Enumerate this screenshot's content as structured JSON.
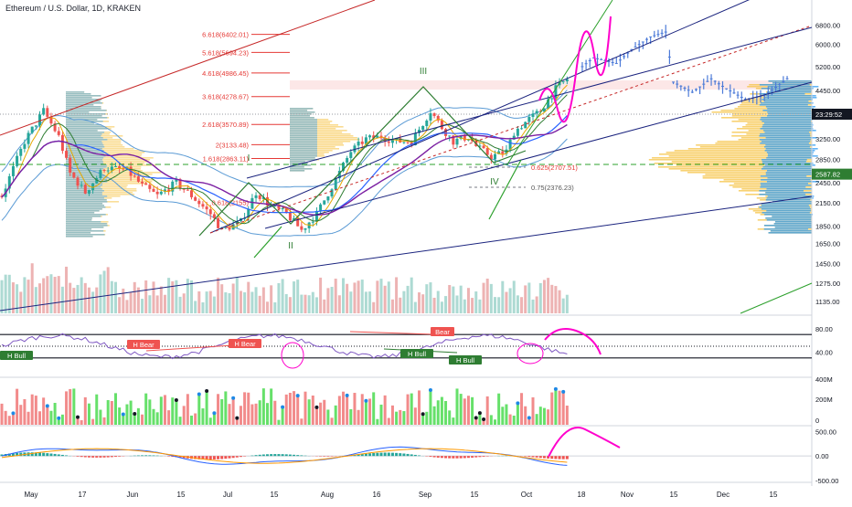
{
  "header": {
    "title": "Ethereum / U.S. Dollar, 1D, KRAKEN"
  },
  "colors": {
    "up": "#26a69a",
    "down": "#ef5350",
    "ma_blue": "#2962ff",
    "bb": "#5b9bd5",
    "channel": "#1a237e",
    "red_line": "#c62828",
    "green_line": "#1b8f1b",
    "magenta": "#ff00cc",
    "fib": "#e53935",
    "vp_yellow": "#f6c344",
    "vp_blue": "#2196f3",
    "price_badge": "#131722",
    "poc_badge": "#2e7d32"
  },
  "chart_data": [
    {
      "type": "candlestick",
      "title": "Ethereum / U.S. Dollar, 1D, KRAKEN",
      "y_scale": "log",
      "ylim": [
        1050,
        8000
      ],
      "y_ticks": [
        6800.0,
        6000.0,
        5200.0,
        4450.0,
        3850.0,
        3250.0,
        2850.0,
        2450.0,
        2150.0,
        1850.0,
        1650.0,
        1450.0,
        1275.0,
        1135.0
      ],
      "x_ticks": [
        "May",
        "17",
        "Jun",
        "15",
        "Jul",
        "15",
        "Aug",
        "16",
        "Sep",
        "15",
        "Oct",
        "18",
        "Nov",
        "15",
        "Dec",
        "15"
      ],
      "price_badges": [
        {
          "label": "23:29:52",
          "value": 3380
        },
        {
          "label": "2587.82",
          "value": 2587.82
        }
      ],
      "fib_levels": [
        {
          "label": "6.618(6402.01)",
          "value": 6402.01
        },
        {
          "label": "5.618(5694.23)",
          "value": 5694.23
        },
        {
          "label": "4.618(4986.45)",
          "value": 4986.45
        },
        {
          "label": "3.618(4278.67)",
          "value": 4278.67
        },
        {
          "label": "2.618(3570.89)",
          "value": 3570.89
        },
        {
          "label": "2(3133.48)",
          "value": 3133.48
        },
        {
          "label": "1.618(2863.11)",
          "value": 2863.11
        },
        {
          "label": "0.618(2155)",
          "value": 2155
        }
      ],
      "retracements": [
        {
          "label": "0.625(2707.51)",
          "value": 2707.51
        },
        {
          "label": "0.75(2376.23)",
          "value": 2376.23
        }
      ],
      "wave_labels": [
        "I",
        "II",
        "III",
        "IV"
      ],
      "price_path": [
        [
          0,
          2250
        ],
        [
          6,
          3200
        ],
        [
          11,
          3900
        ],
        [
          15,
          3300
        ],
        [
          18,
          2600
        ],
        [
          22,
          2300
        ],
        [
          27,
          2700
        ],
        [
          33,
          2650
        ],
        [
          37,
          2400
        ],
        [
          41,
          2250
        ],
        [
          46,
          2450
        ],
        [
          50,
          2250
        ],
        [
          55,
          2000
        ],
        [
          58,
          1800
        ],
        [
          63,
          1900
        ],
        [
          67,
          2300
        ],
        [
          71,
          2100
        ],
        [
          75,
          2000
        ],
        [
          79,
          1800
        ],
        [
          83,
          2000
        ],
        [
          88,
          2500
        ],
        [
          92,
          3000
        ],
        [
          96,
          3250
        ],
        [
          100,
          3300
        ],
        [
          104,
          3200
        ],
        [
          108,
          3200
        ],
        [
          111,
          3600
        ],
        [
          113,
          3900
        ],
        [
          116,
          3500
        ],
        [
          119,
          3200
        ],
        [
          123,
          3300
        ],
        [
          125,
          3100
        ],
        [
          129,
          2900
        ],
        [
          133,
          3000
        ],
        [
          135,
          3400
        ],
        [
          139,
          3700
        ],
        [
          142,
          3900
        ],
        [
          146,
          4500
        ],
        [
          151,
          5000
        ],
        [
          156,
          5500
        ],
        [
          162,
          5300
        ],
        [
          166,
          5800
        ],
        [
          171,
          6300
        ],
        [
          175,
          6500
        ],
        [
          177,
          4700
        ],
        [
          182,
          4400
        ],
        [
          187,
          4800
        ],
        [
          191,
          4500
        ],
        [
          196,
          4200
        ],
        [
          201,
          4300
        ],
        [
          207,
          4800
        ]
      ],
      "candle_count": 150
    },
    {
      "type": "line",
      "title": "RSI",
      "ylim": [
        0,
        100
      ],
      "y_ticks": [
        80.0,
        40.0
      ],
      "levels": [
        70,
        50,
        30
      ],
      "labels": [
        "H Bull",
        "H Bear",
        "H Bear",
        "Bear",
        "H Bull",
        "H Bull"
      ]
    },
    {
      "type": "bar",
      "title": "Volume",
      "y_ticks": [
        "400M",
        "200M",
        "0"
      ]
    },
    {
      "type": "bar",
      "title": "MACD",
      "ylim": [
        -500,
        600
      ],
      "y_ticks": [
        500.0,
        0.0,
        -500.0
      ]
    }
  ]
}
